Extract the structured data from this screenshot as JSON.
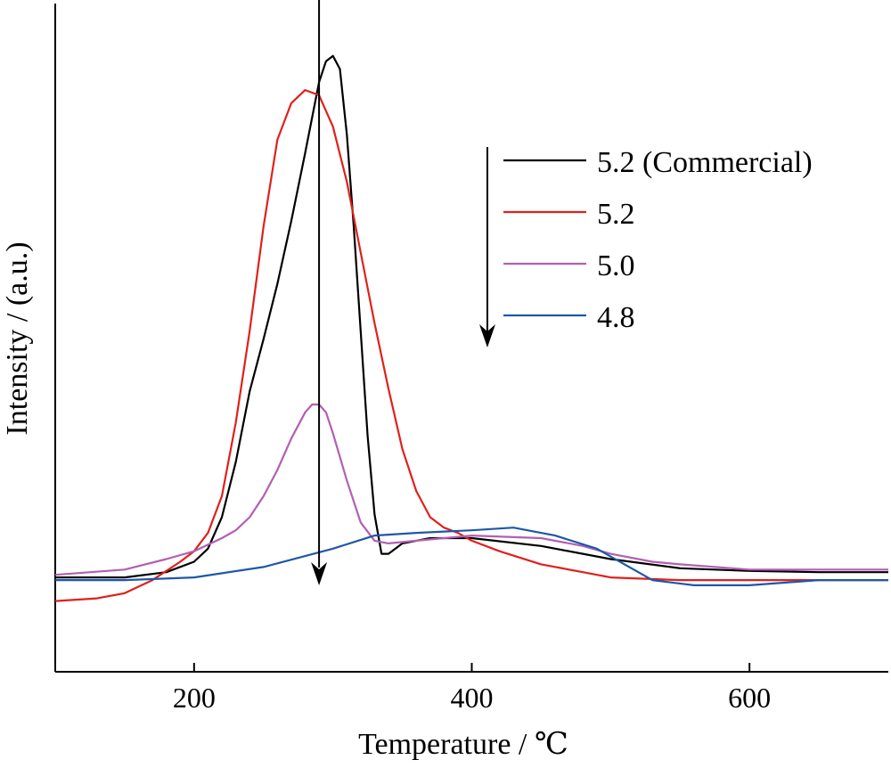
{
  "chart_data": {
    "type": "line",
    "title": "",
    "xlabel": "Temperature / ℃",
    "ylabel": "Intensity / (a.u.)",
    "xlim": [
      100,
      700
    ],
    "ylim": [
      -0.35,
      2.2
    ],
    "xticks": [
      200,
      400,
      600
    ],
    "yticks_shown": false,
    "grid": false,
    "legend": {
      "position": "top-right",
      "order_arrow": true,
      "entries": [
        "5.2 (Commercial)",
        "5.2",
        "5.0",
        "4.8"
      ]
    },
    "annotations": [
      {
        "type": "arrow",
        "direction": "down",
        "x": 290,
        "y_from": 2.26,
        "y_to": -0.02
      }
    ],
    "series": [
      {
        "name": "5.2 (Commercial)",
        "color": "#000000",
        "points": [
          [
            100,
            0.01
          ],
          [
            150,
            0.01
          ],
          [
            180,
            0.03
          ],
          [
            200,
            0.07
          ],
          [
            210,
            0.12
          ],
          [
            220,
            0.24
          ],
          [
            230,
            0.45
          ],
          [
            240,
            0.72
          ],
          [
            250,
            0.92
          ],
          [
            260,
            1.13
          ],
          [
            270,
            1.37
          ],
          [
            280,
            1.63
          ],
          [
            290,
            1.9
          ],
          [
            295,
            1.98
          ],
          [
            300,
            2.0
          ],
          [
            305,
            1.95
          ],
          [
            310,
            1.7
          ],
          [
            315,
            1.35
          ],
          [
            320,
            0.95
          ],
          [
            325,
            0.55
          ],
          [
            330,
            0.25
          ],
          [
            335,
            0.1
          ],
          [
            340,
            0.1
          ],
          [
            350,
            0.14
          ],
          [
            370,
            0.16
          ],
          [
            400,
            0.16
          ],
          [
            450,
            0.13
          ],
          [
            500,
            0.08
          ],
          [
            550,
            0.045
          ],
          [
            600,
            0.035
          ],
          [
            650,
            0.03
          ],
          [
            700,
            0.03
          ]
        ]
      },
      {
        "name": "5.2",
        "color": "#e0201b",
        "points": [
          [
            100,
            -0.08
          ],
          [
            130,
            -0.07
          ],
          [
            150,
            -0.05
          ],
          [
            170,
            0.0
          ],
          [
            190,
            0.07
          ],
          [
            200,
            0.11
          ],
          [
            210,
            0.18
          ],
          [
            220,
            0.32
          ],
          [
            230,
            0.6
          ],
          [
            240,
            0.95
          ],
          [
            250,
            1.35
          ],
          [
            260,
            1.68
          ],
          [
            270,
            1.82
          ],
          [
            280,
            1.87
          ],
          [
            290,
            1.85
          ],
          [
            300,
            1.73
          ],
          [
            310,
            1.52
          ],
          [
            320,
            1.25
          ],
          [
            330,
            0.98
          ],
          [
            340,
            0.73
          ],
          [
            350,
            0.5
          ],
          [
            360,
            0.34
          ],
          [
            370,
            0.24
          ],
          [
            380,
            0.2
          ],
          [
            390,
            0.18
          ],
          [
            400,
            0.15
          ],
          [
            420,
            0.11
          ],
          [
            450,
            0.06
          ],
          [
            480,
            0.03
          ],
          [
            500,
            0.01
          ],
          [
            550,
            0.0
          ],
          [
            600,
            0.0
          ],
          [
            650,
            0.0
          ],
          [
            700,
            0.0
          ]
        ]
      },
      {
        "name": "5.0",
        "color": "#b25fb3",
        "points": [
          [
            100,
            0.02
          ],
          [
            150,
            0.04
          ],
          [
            180,
            0.08
          ],
          [
            200,
            0.11
          ],
          [
            220,
            0.16
          ],
          [
            230,
            0.19
          ],
          [
            240,
            0.24
          ],
          [
            250,
            0.32
          ],
          [
            260,
            0.42
          ],
          [
            270,
            0.54
          ],
          [
            280,
            0.64
          ],
          [
            285,
            0.67
          ],
          [
            290,
            0.67
          ],
          [
            295,
            0.64
          ],
          [
            300,
            0.56
          ],
          [
            310,
            0.38
          ],
          [
            320,
            0.22
          ],
          [
            330,
            0.15
          ],
          [
            340,
            0.14
          ],
          [
            360,
            0.15
          ],
          [
            400,
            0.17
          ],
          [
            450,
            0.16
          ],
          [
            480,
            0.13
          ],
          [
            500,
            0.1
          ],
          [
            530,
            0.07
          ],
          [
            550,
            0.06
          ],
          [
            600,
            0.04
          ],
          [
            650,
            0.04
          ],
          [
            700,
            0.04
          ]
        ]
      },
      {
        "name": "4.8",
        "color": "#1f57a8",
        "points": [
          [
            100,
            0.0
          ],
          [
            150,
            0.0
          ],
          [
            200,
            0.01
          ],
          [
            250,
            0.05
          ],
          [
            300,
            0.12
          ],
          [
            330,
            0.17
          ],
          [
            360,
            0.18
          ],
          [
            400,
            0.19
          ],
          [
            430,
            0.2
          ],
          [
            460,
            0.17
          ],
          [
            490,
            0.12
          ],
          [
            510,
            0.06
          ],
          [
            530,
            0.0
          ],
          [
            560,
            -0.02
          ],
          [
            600,
            -0.02
          ],
          [
            650,
            0.0
          ],
          [
            700,
            0.0
          ]
        ]
      }
    ]
  }
}
